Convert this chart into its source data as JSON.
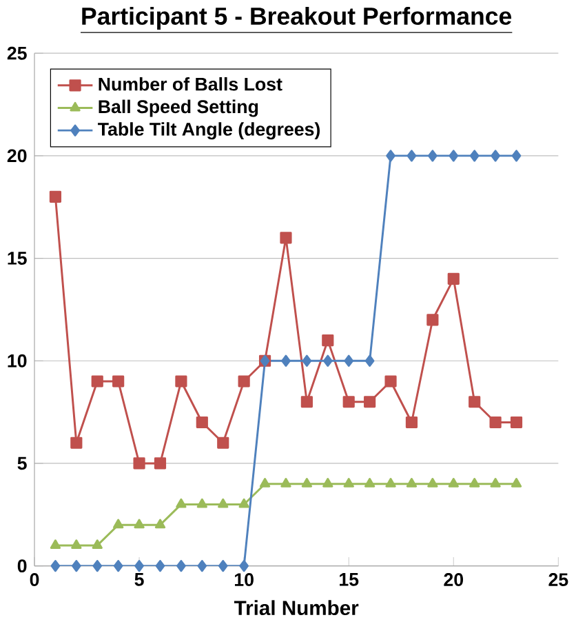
{
  "chart_data": {
    "type": "line",
    "title": "Participant 5 - Breakout Performance",
    "xlabel": "Trial Number",
    "x": [
      1,
      2,
      3,
      4,
      5,
      6,
      7,
      8,
      9,
      10,
      11,
      12,
      13,
      14,
      15,
      16,
      17,
      18,
      19,
      20,
      21,
      22,
      23
    ],
    "series": [
      {
        "name": "Number of Balls Lost",
        "color": "#c0504d",
        "marker": "square",
        "values": [
          18,
          6,
          9,
          9,
          5,
          5,
          9,
          7,
          6,
          9,
          10,
          16,
          8,
          11,
          8,
          8,
          9,
          7,
          12,
          14,
          8,
          7,
          7
        ]
      },
      {
        "name": "Ball Speed Setting",
        "color": "#9bbb59",
        "marker": "triangle",
        "values": [
          1,
          1,
          1,
          2,
          2,
          2,
          3,
          3,
          3,
          3,
          4,
          4,
          4,
          4,
          4,
          4,
          4,
          4,
          4,
          4,
          4,
          4,
          4
        ]
      },
      {
        "name": "Table Tilt Angle (degrees)",
        "color": "#4f81bd",
        "marker": "diamond",
        "values": [
          0,
          0,
          0,
          0,
          0,
          0,
          0,
          0,
          0,
          0,
          10,
          10,
          10,
          10,
          10,
          10,
          20,
          20,
          20,
          20,
          20,
          20,
          20
        ]
      }
    ],
    "xlim": [
      0,
      25
    ],
    "xticks": [
      0,
      5,
      10,
      15,
      20,
      25
    ],
    "ylim": [
      0,
      25
    ],
    "yticks": [
      0,
      5,
      10,
      15,
      20,
      25
    ],
    "grid": "y",
    "legend": "top left"
  }
}
